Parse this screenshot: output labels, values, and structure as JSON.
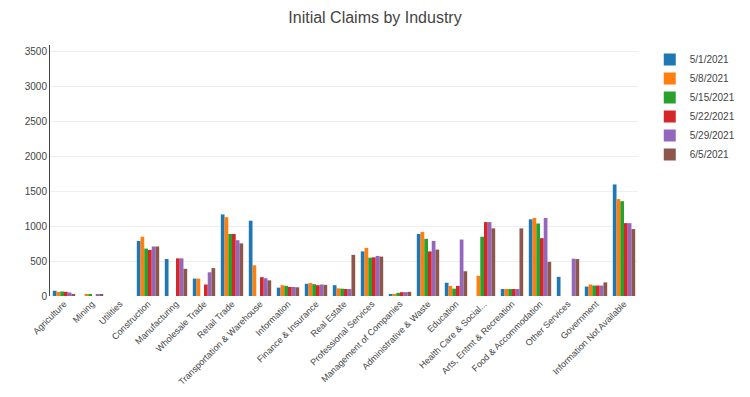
{
  "chart_data": {
    "type": "bar",
    "title": "Initial Claims by Industry",
    "categories": [
      "Agriculture",
      "Mining",
      "Utilities",
      "Construction",
      "Manufacturing",
      "Wholesale Trade",
      "Retail Trade",
      "Transportation & Warehouse",
      "Information",
      "Finance & Insurance",
      "Real Estate",
      "Professional Services",
      "Management of Companies",
      "Administrative & Waste",
      "Education",
      "Health Care & Social...",
      "Arts, Entmt & Recreation",
      "Food & Accommodation",
      "Other Services",
      "Government",
      "Information Not Available"
    ],
    "series": [
      {
        "name": "5/1/2021",
        "values": [
          75,
          0,
          0,
          790,
          530,
          250,
          1170,
          1080,
          120,
          175,
          155,
          640,
          30,
          890,
          190,
          0,
          100,
          1100,
          275,
          135,
          1600
        ]
      },
      {
        "name": "5/8/2021",
        "values": [
          60,
          20,
          0,
          850,
          0,
          250,
          1130,
          440,
          155,
          185,
          110,
          690,
          30,
          920,
          145,
          290,
          100,
          1120,
          0,
          165,
          1390
        ]
      },
      {
        "name": "5/15/2021",
        "values": [
          65,
          20,
          0,
          680,
          0,
          0,
          890,
          0,
          145,
          170,
          105,
          550,
          45,
          820,
          105,
          850,
          100,
          1040,
          0,
          150,
          1360
        ]
      },
      {
        "name": "5/22/2021",
        "values": [
          60,
          0,
          0,
          660,
          540,
          165,
          890,
          270,
          130,
          155,
          100,
          555,
          55,
          640,
          145,
          1060,
          100,
          830,
          0,
          150,
          1045
        ]
      },
      {
        "name": "5/29/2021",
        "values": [
          50,
          20,
          0,
          710,
          540,
          340,
          800,
          255,
          130,
          165,
          100,
          575,
          55,
          790,
          810,
          1060,
          100,
          1120,
          535,
          150,
          1045
        ]
      },
      {
        "name": "6/5/2021",
        "values": [
          30,
          20,
          0,
          710,
          390,
          400,
          755,
          225,
          125,
          160,
          590,
          565,
          60,
          665,
          355,
          970,
          970,
          490,
          530,
          195,
          960
        ]
      }
    ],
    "ylim": [
      0,
      3600
    ],
    "yticks": [
      0,
      500,
      1000,
      1500,
      2000,
      2500,
      3000,
      3500
    ],
    "grid": true,
    "legend": "upper right"
  }
}
